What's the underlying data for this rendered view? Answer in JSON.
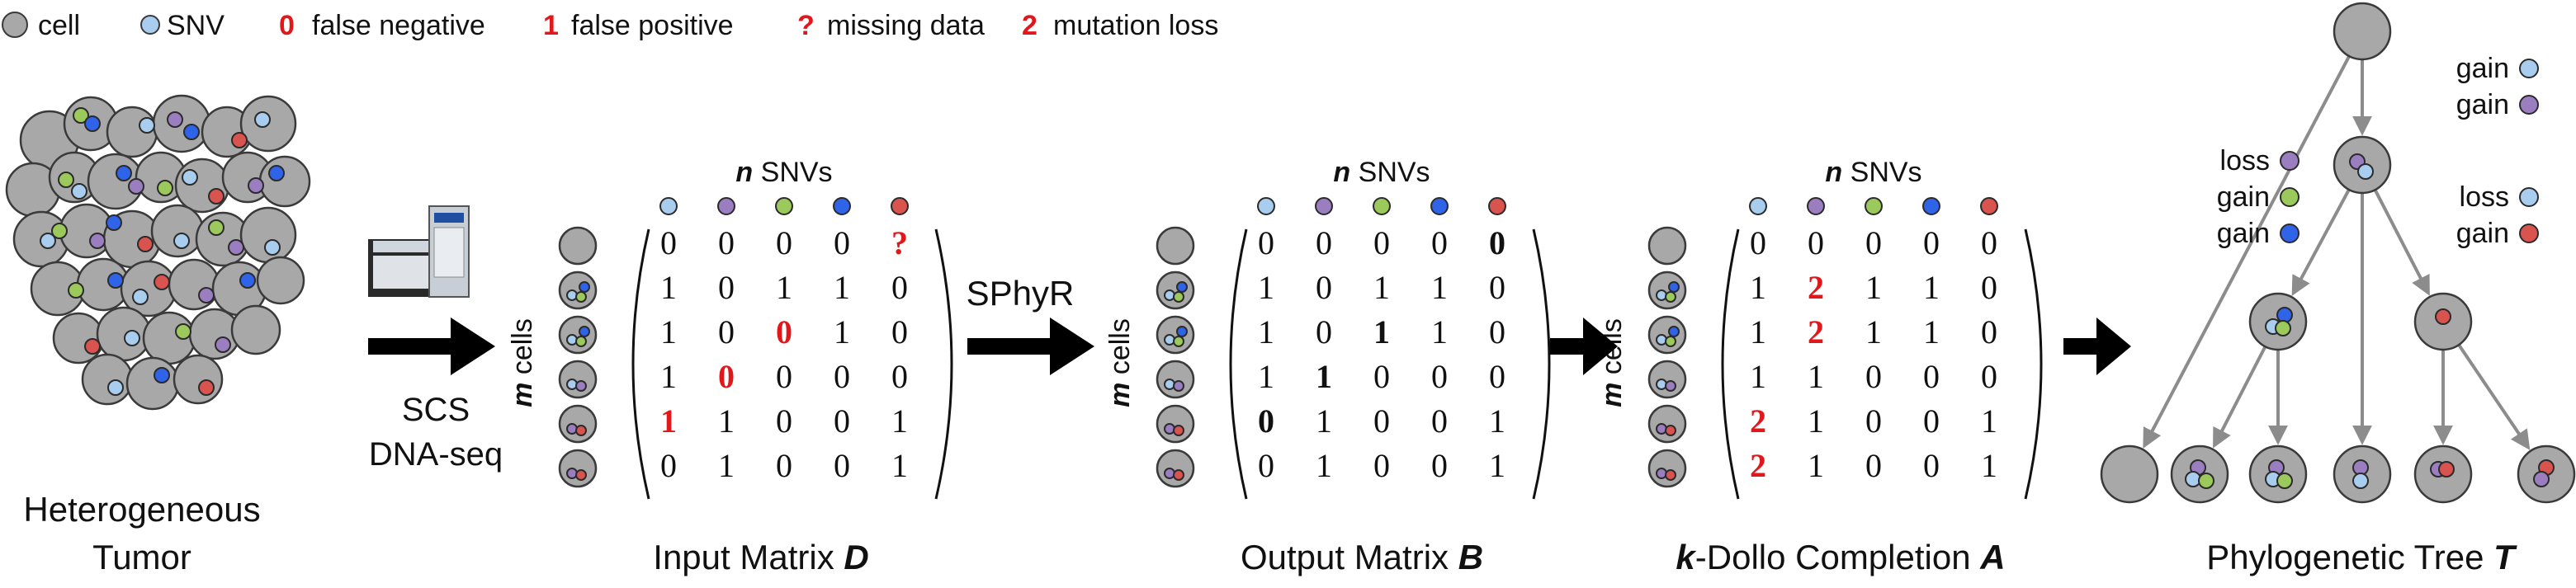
{
  "colors": {
    "cell_fill": "#a8a8a8",
    "cell_stroke": "#3a3a3a",
    "snv_fill": "#a9cdee",
    "red_accent": "#e0181c",
    "arrow_gray": "#8c8c8c",
    "arrow_black": "#000000",
    "mutation_colors": [
      "#a9cdee",
      "#9b7ec0",
      "#9cc95b",
      "#2f63e8",
      "#d9534f"
    ]
  },
  "legend": {
    "cell": "cell",
    "snv": "SNV",
    "false_negative_symbol": "0",
    "false_negative": "false negative",
    "false_positive_symbol": "1",
    "false_positive": "false positive",
    "missing_symbol": "?",
    "missing": "missing data",
    "loss_symbol": "2",
    "loss": "mutation loss"
  },
  "tumor": {
    "label_line1": "Heterogeneous",
    "label_line2": "Tumor"
  },
  "sequencer": {
    "label_line1": "SCS",
    "label_line2": "DNA-seq"
  },
  "method_label": "SPhyR",
  "axis": {
    "n_symbol": "n",
    "snvs": "SNVs",
    "m_symbol": "m",
    "cells": "cells"
  },
  "matrices": {
    "input": {
      "caption_text": "Input Matrix ",
      "caption_symbol": "D",
      "rows": [
        [
          "0",
          "0",
          "0",
          "0",
          "?"
        ],
        [
          "1",
          "0",
          "1",
          "1",
          "0"
        ],
        [
          "1",
          "0",
          "0",
          "1",
          "0"
        ],
        [
          "1",
          "0",
          "0",
          "0",
          "0"
        ],
        [
          "1",
          "1",
          "0",
          "0",
          "1"
        ],
        [
          "0",
          "1",
          "0",
          "0",
          "1"
        ]
      ],
      "highlight": [
        [
          0,
          4,
          "red"
        ],
        [
          2,
          2,
          "red"
        ],
        [
          3,
          1,
          "red"
        ],
        [
          4,
          0,
          "red"
        ]
      ]
    },
    "output": {
      "caption_text": "Output Matrix ",
      "caption_symbol": "B",
      "rows": [
        [
          "0",
          "0",
          "0",
          "0",
          "0"
        ],
        [
          "1",
          "0",
          "1",
          "1",
          "0"
        ],
        [
          "1",
          "0",
          "1",
          "1",
          "0"
        ],
        [
          "1",
          "1",
          "0",
          "0",
          "0"
        ],
        [
          "0",
          "1",
          "0",
          "0",
          "1"
        ],
        [
          "0",
          "1",
          "0",
          "0",
          "1"
        ]
      ],
      "highlight": [
        [
          0,
          4,
          "bold"
        ],
        [
          2,
          2,
          "bold"
        ],
        [
          3,
          1,
          "bold"
        ],
        [
          4,
          0,
          "bold"
        ]
      ]
    },
    "completion": {
      "caption_symbol_k": "k",
      "caption_text": "-Dollo Completion ",
      "caption_symbol": "A",
      "rows": [
        [
          "0",
          "0",
          "0",
          "0",
          "0"
        ],
        [
          "1",
          "2",
          "1",
          "1",
          "0"
        ],
        [
          "1",
          "2",
          "1",
          "1",
          "0"
        ],
        [
          "1",
          "1",
          "0",
          "0",
          "0"
        ],
        [
          "2",
          "1",
          "0",
          "0",
          "1"
        ],
        [
          "2",
          "1",
          "0",
          "0",
          "1"
        ]
      ],
      "highlight": [
        [
          1,
          1,
          "red"
        ],
        [
          2,
          1,
          "red"
        ],
        [
          4,
          0,
          "red"
        ],
        [
          5,
          0,
          "red"
        ]
      ]
    }
  },
  "tree": {
    "caption_text": "Phylogenetic Tree ",
    "caption_symbol": "T",
    "root_events": [
      "gain",
      "gain"
    ],
    "left_events": [
      "loss",
      "gain",
      "gain"
    ],
    "right_events": [
      "loss",
      "gain"
    ]
  }
}
